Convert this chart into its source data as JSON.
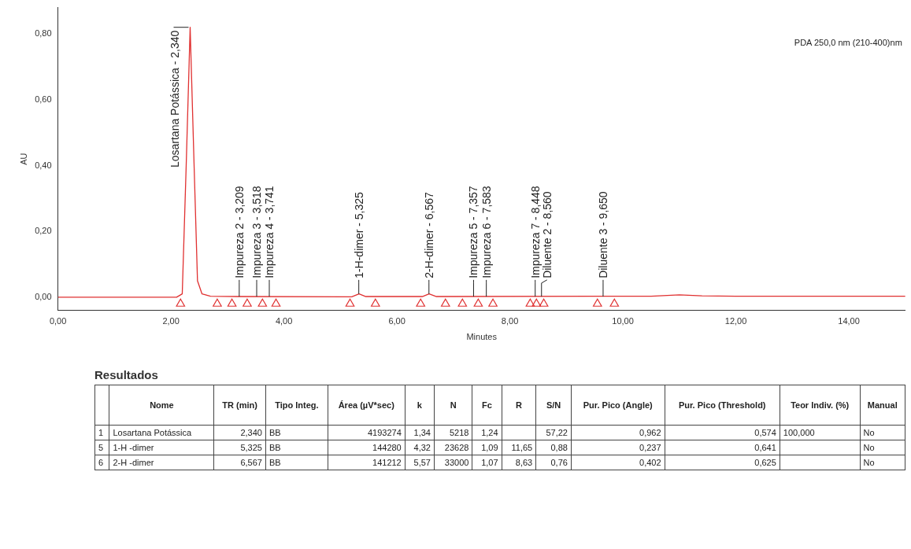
{
  "chart_data": [
    {
      "type": "line",
      "xlabel": "Minutes",
      "ylabel": "AU",
      "xlim": [
        0,
        15
      ],
      "ylim": [
        -0.04,
        0.88
      ],
      "xticks": [
        {
          "value": 0,
          "label": "0,00"
        },
        {
          "value": 2,
          "label": "2,00"
        },
        {
          "value": 4,
          "label": "4,00"
        },
        {
          "value": 6,
          "label": "6,00"
        },
        {
          "value": 8,
          "label": "8,00"
        },
        {
          "value": 10,
          "label": "10,00"
        },
        {
          "value": 12,
          "label": "12,00"
        },
        {
          "value": 14,
          "label": "14,00"
        }
      ],
      "yticks": [
        {
          "value": 0,
          "label": "0,00"
        },
        {
          "value": 0.2,
          "label": "0,20"
        },
        {
          "value": 0.4,
          "label": "0,40"
        },
        {
          "value": 0.6,
          "label": "0,60"
        },
        {
          "value": 0.8,
          "label": "0,80"
        }
      ],
      "grid": false,
      "legend": false,
      "series": [
        {
          "type": "line",
          "color": "#e03030",
          "marker": "none",
          "x": [
            0,
            2.1,
            2.2,
            2.27,
            2.34,
            2.41,
            2.47,
            2.55,
            2.7,
            3.2,
            5.2,
            5.33,
            5.45,
            6.45,
            6.57,
            6.7,
            10.5,
            11,
            11.4,
            12,
            15
          ],
          "values": [
            0,
            0,
            0.01,
            0.4,
            0.82,
            0.4,
            0.05,
            0.01,
            0.003,
            0.002,
            0.001,
            0.01,
            0.002,
            0.002,
            0.01,
            0.002,
            0.003,
            0.007,
            0.004,
            0.003,
            0.003
          ]
        },
        {
          "type": "scatter",
          "color": "#e03030",
          "marker": "triangle",
          "x": [
            2.17,
            2.82,
            3.08,
            3.35,
            3.62,
            3.86,
            5.17,
            5.62,
            6.42,
            6.86,
            7.16,
            7.44,
            7.7,
            8.36,
            8.47,
            8.6,
            9.55,
            9.85
          ],
          "values": [
            -0.02,
            -0.02,
            -0.02,
            -0.02,
            -0.02,
            -0.02,
            -0.02,
            -0.02,
            -0.02,
            -0.02,
            -0.02,
            -0.02,
            -0.02,
            -0.02,
            -0.02,
            -0.02,
            -0.02,
            -0.02
          ]
        }
      ],
      "annotations": [
        {
          "text": "Losartana Potássica - 2,340",
          "x": 2.34,
          "y": 0.82
        },
        {
          "text": "Impureza 2 - 3,209",
          "x": 3.209,
          "y": 0.002
        },
        {
          "text": "Impureza 3 - 3,518",
          "x": 3.518,
          "y": 0.002
        },
        {
          "text": "Impureza 4 - 3,741",
          "x": 3.741,
          "y": 0.002
        },
        {
          "text": "1-H-dimer - 5,325",
          "x": 5.325,
          "y": 0.01
        },
        {
          "text": "2-H-dimer - 6,567",
          "x": 6.567,
          "y": 0.01
        },
        {
          "text": "Impureza 5 - 7,357",
          "x": 7.357,
          "y": 0.002
        },
        {
          "text": "Impureza 6 - 7,583",
          "x": 7.583,
          "y": 0.002
        },
        {
          "text": "Impureza 7 - 8,448",
          "x": 8.448,
          "y": 0.002
        },
        {
          "text": "Diluente 2 - 8,560",
          "x": 8.56,
          "y": 0.002
        },
        {
          "text": "Diluente 3 - 9,650",
          "x": 9.65,
          "y": 0.002
        },
        "PDA 250,0 nm (210-400)nm"
      ]
    },
    {
      "type": "other",
      "title": "Resultados",
      "categories": [
        null,
        "Nome",
        "TR (min)",
        "Tipo Integ.",
        "Área (µV*sec)",
        "k",
        "N",
        "Fc",
        "R",
        "S/N",
        "Pur. Pico (Angle)",
        "Pur. Pico (Threshold)",
        "Teor Indiv. (%)",
        "Manual"
      ],
      "cell_labels": [
        [
          "1",
          "Losartana Potássica",
          "2,340",
          "BB",
          "4193274",
          "1,34",
          "5218",
          "1,24",
          null,
          "57,22",
          "0,962",
          "0,574",
          "100,000",
          "No"
        ],
        [
          "5",
          "1-H -dimer",
          "5,325",
          "BB",
          "144280",
          "4,32",
          "23628",
          "1,09",
          "11,65",
          "0,88",
          "0,237",
          "0,641",
          null,
          "No"
        ],
        [
          "6",
          "2-H -dimer",
          "6,567",
          "BB",
          "141212",
          "5,57",
          "33000",
          "1,07",
          "8,63",
          "0,76",
          "0,402",
          "0,625",
          null,
          "No"
        ]
      ]
    }
  ]
}
